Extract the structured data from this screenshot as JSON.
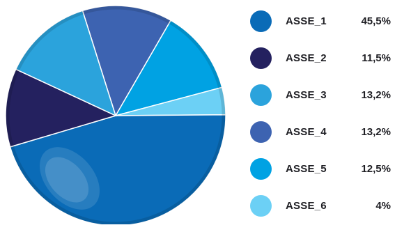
{
  "chart_data": {
    "type": "pie",
    "slices": [
      {
        "label": "ASSE_1",
        "value": 45.5,
        "display": "45,5%",
        "color": "#0a6bb7"
      },
      {
        "label": "ASSE_2",
        "value": 11.5,
        "display": "11,5%",
        "color": "#24215f"
      },
      {
        "label": "ASSE_3",
        "value": 13.2,
        "display": "13,2%",
        "color": "#2ba3dc"
      },
      {
        "label": "ASSE_4",
        "value": 13.2,
        "display": "13,2%",
        "color": "#3d63b1"
      },
      {
        "label": "ASSE_5",
        "value": 12.5,
        "display": "12,5%",
        "color": "#00a2e3"
      },
      {
        "label": "ASSE_6",
        "value": 4,
        "display": "4%",
        "color": "#6cd0f5"
      }
    ],
    "legend_position": "right"
  }
}
